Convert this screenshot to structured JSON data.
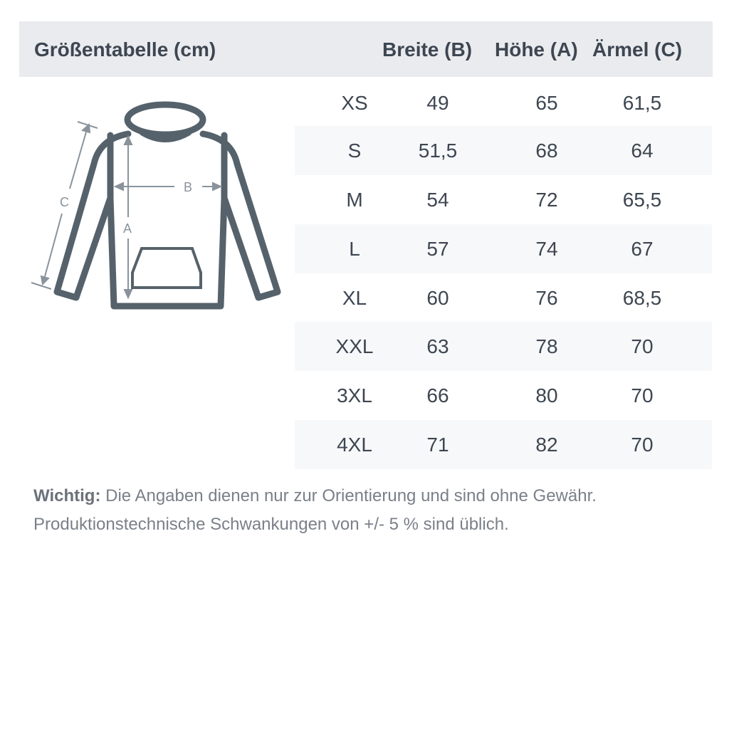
{
  "header": {
    "title": "Größentabelle (cm)",
    "col_breite": "Breite (B)",
    "col_hoehe": "Höhe (A)",
    "col_aermel": "Ärmel (C)"
  },
  "diagram": {
    "label_a": "A",
    "label_b": "B",
    "label_c": "C",
    "stroke_color": "#56626b",
    "arrow_color": "#8a939c"
  },
  "rows": [
    {
      "size": "XS",
      "breite": "49",
      "hoehe": "65",
      "aermel": "61,5"
    },
    {
      "size": "S",
      "breite": "51,5",
      "hoehe": "68",
      "aermel": "64"
    },
    {
      "size": "M",
      "breite": "54",
      "hoehe": "72",
      "aermel": "65,5"
    },
    {
      "size": "L",
      "breite": "57",
      "hoehe": "74",
      "aermel": "67"
    },
    {
      "size": "XL",
      "breite": "60",
      "hoehe": "76",
      "aermel": "68,5"
    },
    {
      "size": "XXL",
      "breite": "63",
      "hoehe": "78",
      "aermel": "70"
    },
    {
      "size": "3XL",
      "breite": "66",
      "hoehe": "80",
      "aermel": "70"
    },
    {
      "size": "4XL",
      "breite": "71",
      "hoehe": "82",
      "aermel": "70"
    }
  ],
  "note": {
    "bold": "Wichtig:",
    "line1": " Die Angaben dienen nur zur Orientierung und sind ohne Gewähr.",
    "line2": "Produktionstechnische Schwankungen von +/- 5 % sind üblich."
  }
}
